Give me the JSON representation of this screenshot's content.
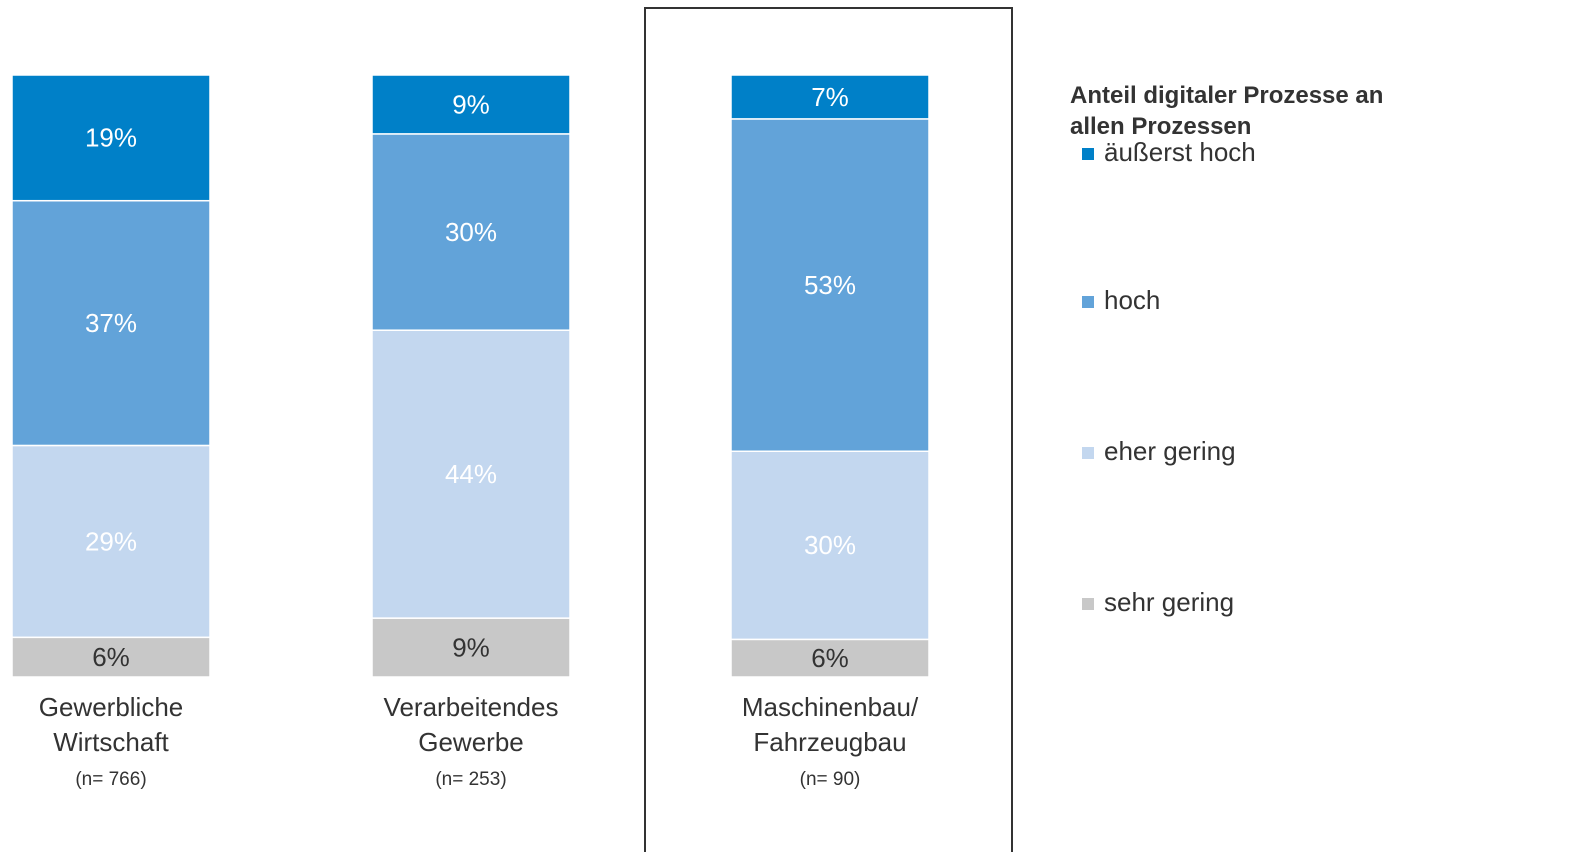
{
  "chart_data": {
    "type": "stacked_bar",
    "categories": [
      [
        "Gewerbliche",
        "Wirtschaft"
      ],
      [
        "Verarbeitendes",
        "Gewerbe"
      ],
      [
        "Maschinenbau/",
        "Fahrzeugbau"
      ]
    ],
    "sample_sizes": [
      "(n= 766)",
      "(n= 253)",
      "(n= 90)"
    ],
    "legend_title": "Anteil digitaler Prozesse an allen Prozessen",
    "series": [
      {
        "name": "äußerst hoch",
        "color": "#0080c8",
        "label_color": "#ffffff",
        "values": [
          19,
          9,
          7
        ],
        "value_labels": [
          "19%",
          "9%",
          "7%"
        ]
      },
      {
        "name": "hoch",
        "color": "#62a3d9",
        "label_color": "#ffffff",
        "values": [
          37,
          30,
          53
        ],
        "value_labels": [
          "37%",
          "30%",
          "53%"
        ]
      },
      {
        "name": "eher gering",
        "color": "#c3d7ef",
        "label_color": "#ffffff",
        "values": [
          29,
          44,
          30
        ],
        "value_labels": [
          "29%",
          "44%",
          "30%"
        ]
      },
      {
        "name": "sehr gering",
        "color": "#c8c8c8",
        "label_color": "#333333",
        "values": [
          6,
          9,
          6
        ],
        "value_labels": [
          "6%",
          "9%",
          "6%"
        ]
      }
    ],
    "legend": "right"
  }
}
